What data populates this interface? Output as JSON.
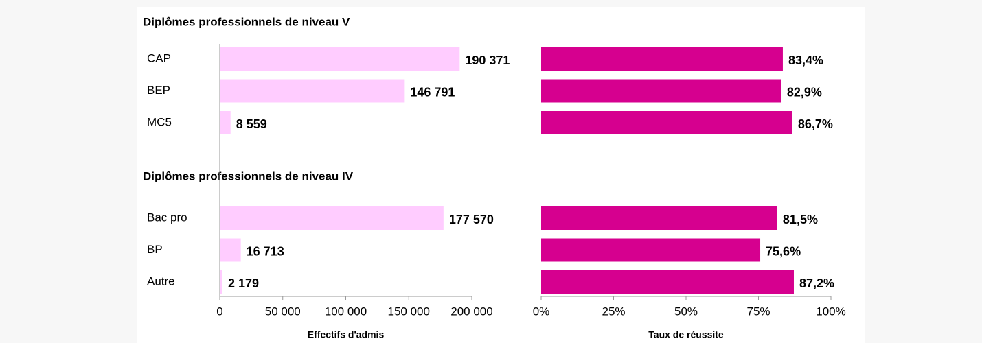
{
  "chart_data": [
    {
      "type": "bar",
      "groups": [
        "Diplômes professionnels de niveau V",
        "Diplômes professionnels de niveau IV"
      ],
      "categories": [
        [
          "CAP",
          "BEP",
          "MC5"
        ],
        [
          "Bac pro",
          "BP",
          "Autre"
        ]
      ],
      "values": [
        [
          190371,
          146791,
          8559
        ],
        [
          177570,
          16713,
          2179
        ]
      ],
      "value_labels": [
        [
          "190 371",
          "146 791",
          "8 559"
        ],
        [
          "177 570",
          "16 713",
          "2 179"
        ]
      ],
      "color": "#ffccff",
      "xlabel": "Effectifs d'admis",
      "xlim": [
        0,
        200000
      ],
      "xticks": [
        0,
        {
          "value": 50000,
          "label": "50 000"
        },
        {
          "value": 100000,
          "label": "100 000"
        },
        {
          "value": 150000,
          "label": "150 000"
        },
        {
          "value": 200000,
          "label": "200 000"
        }
      ]
    },
    {
      "type": "bar",
      "values": [
        [
          83.4,
          82.9,
          86.7
        ],
        [
          81.5,
          75.6,
          87.2
        ]
      ],
      "value_labels": [
        [
          "83,4%",
          "82,9%",
          "86,7%"
        ],
        [
          "81,5%",
          "75,6%",
          "87,2%"
        ]
      ],
      "color": "#d6008f",
      "xlabel": "Taux de réussite",
      "xlim": [
        0,
        100
      ],
      "xticks": [
        {
          "value": 0,
          "label": "0%"
        },
        {
          "value": 25,
          "label": "25%"
        },
        {
          "value": 50,
          "label": "50%"
        },
        {
          "value": 75,
          "label": "75%"
        },
        {
          "value": 100,
          "label": "100%"
        }
      ]
    }
  ]
}
